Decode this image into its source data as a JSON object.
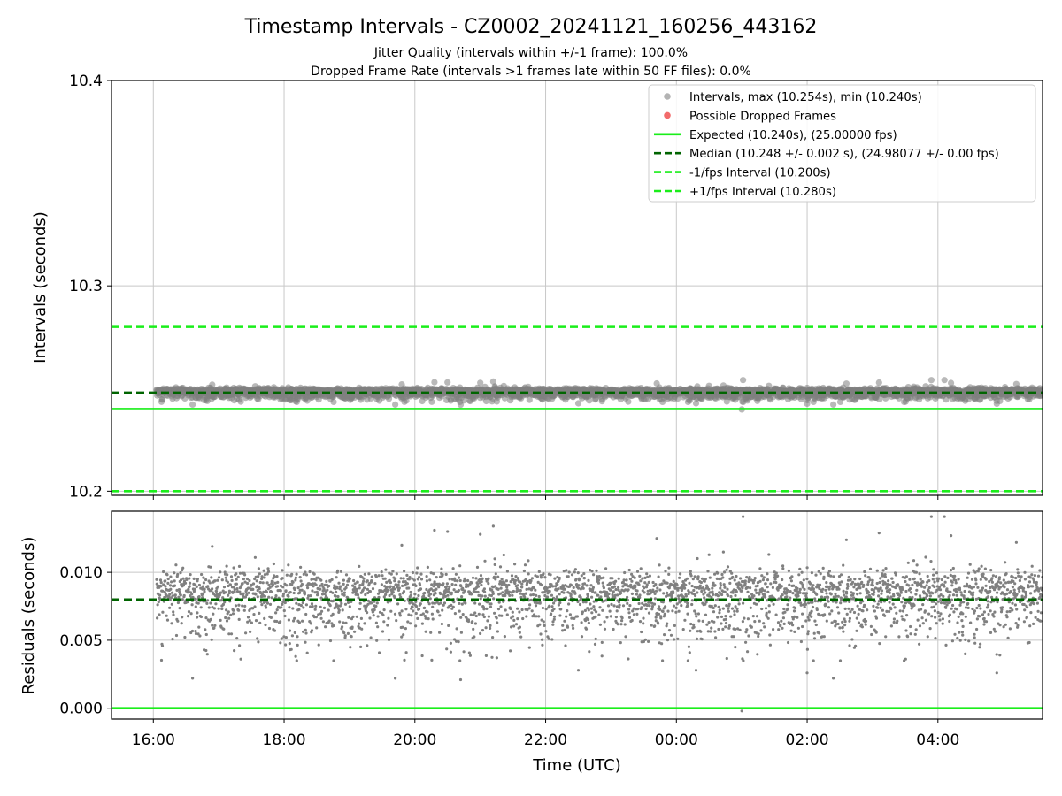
{
  "title": "Timestamp Intervals - CZ0002_20241121_160256_443162",
  "subtitle_lines": [
    "Jitter Quality (intervals within +/-1 frame): 100.0%",
    "Dropped Frame Rate (intervals >1 frames late within 50 FF files): 0.0%"
  ],
  "colors": {
    "points": "#808080",
    "dropped": "#f26b6b",
    "expected": "#1aee1a",
    "median": "#006400",
    "fps_band": "#1aee1a",
    "grid": "#c8c8c8"
  },
  "chart_data": [
    {
      "type": "scatter",
      "name": "intervals",
      "x_axis": {
        "label": "",
        "range_hours": [
          15.36,
          29.6
        ],
        "ticks": [
          "16:00",
          "18:00",
          "20:00",
          "22:00",
          "00:00",
          "02:00",
          "04:00"
        ],
        "tick_hours": [
          16,
          18,
          20,
          22,
          24,
          26,
          28
        ]
      },
      "ylabel": "Intervals (seconds)",
      "ylim": [
        10.198,
        10.4
      ],
      "yticks": [
        "10.2",
        "10.3",
        "10.4"
      ],
      "ytick_values": [
        10.2,
        10.3,
        10.4
      ],
      "grid": true,
      "start_hour": 16.05,
      "end_hour": 29.6,
      "stats": {
        "max": 10.254,
        "min": 10.24,
        "median": 10.248,
        "median_spread": 0.002
      },
      "lines": [
        {
          "key": "expected",
          "y": 10.24,
          "style": "solid"
        },
        {
          "key": "median",
          "y": 10.248,
          "style": "dashed"
        },
        {
          "key": "minus_fps",
          "y": 10.2,
          "style": "dashed"
        },
        {
          "key": "plus_fps",
          "y": 10.28,
          "style": "dashed"
        }
      ],
      "legend": {
        "placement": "top-right",
        "entries": [
          {
            "label": "Intervals, max (10.254s), min (10.240s)",
            "marker": "dot",
            "color_key": "points"
          },
          {
            "label": "Possible Dropped Frames",
            "marker": "dot",
            "color_key": "dropped"
          },
          {
            "label": "Expected (10.240s), (25.00000 fps)",
            "marker": "line-solid",
            "color_key": "expected"
          },
          {
            "label": "Median (10.248 +/- 0.002 s), (24.98077 +/- 0.00 fps)",
            "marker": "line-dashed",
            "color_key": "median"
          },
          {
            "label": "-1/fps Interval (10.200s)",
            "marker": "line-dashed",
            "color_key": "fps_band"
          },
          {
            "label": "+1/fps Interval (10.280s)",
            "marker": "line-dashed",
            "color_key": "fps_band"
          }
        ]
      }
    },
    {
      "type": "scatter",
      "name": "residuals",
      "x_axis": {
        "label": "Time (UTC)",
        "range_hours": [
          15.36,
          29.6
        ],
        "ticks": [
          "16:00",
          "18:00",
          "20:00",
          "22:00",
          "00:00",
          "02:00",
          "04:00"
        ],
        "tick_hours": [
          16,
          18,
          20,
          22,
          24,
          26,
          28
        ]
      },
      "ylabel": "Residuals (seconds)",
      "ylim": [
        -0.0008,
        0.0145
      ],
      "yticks": [
        "0.000",
        "0.005",
        "0.010"
      ],
      "ytick_values": [
        0.0,
        0.005,
        0.01
      ],
      "grid": true,
      "lines": [
        {
          "key": "expected",
          "y": 0.0,
          "style": "solid"
        },
        {
          "key": "median",
          "y": 0.008,
          "style": "dashed"
        }
      ],
      "outliers": [
        {
          "hour": 25.02,
          "y": 0.0141
        },
        {
          "hour": 28.1,
          "y": 0.0141
        },
        {
          "hour": 27.9,
          "y": 0.0141
        },
        {
          "hour": 21.2,
          "y": 0.0134
        },
        {
          "hour": 20.3,
          "y": 0.0131
        },
        {
          "hour": 20.5,
          "y": 0.013
        },
        {
          "hour": 21.0,
          "y": 0.0128
        },
        {
          "hour": 27.1,
          "y": 0.0129
        },
        {
          "hour": 28.2,
          "y": 0.0127
        },
        {
          "hour": 26.6,
          "y": 0.0124
        },
        {
          "hour": 23.7,
          "y": 0.0125
        },
        {
          "hour": 19.8,
          "y": 0.012
        },
        {
          "hour": 16.9,
          "y": 0.0119
        },
        {
          "hour": 29.2,
          "y": 0.0122
        },
        {
          "hour": 24.5,
          "y": 0.0113
        },
        {
          "hour": 20.7,
          "y": 0.0021
        },
        {
          "hour": 19.7,
          "y": 0.0022
        },
        {
          "hour": 16.6,
          "y": 0.0022
        },
        {
          "hour": 26.4,
          "y": 0.0022
        },
        {
          "hour": 26.0,
          "y": 0.0026
        },
        {
          "hour": 28.9,
          "y": 0.0026
        },
        {
          "hour": 24.3,
          "y": 0.0028
        },
        {
          "hour": 22.5,
          "y": 0.0028
        },
        {
          "hour": 25.0,
          "y": -0.0002
        },
        {
          "hour": 24.9,
          "y": 0.0045
        }
      ]
    }
  ]
}
